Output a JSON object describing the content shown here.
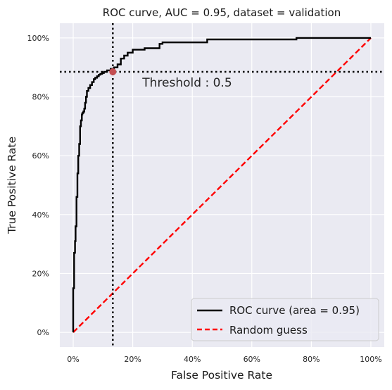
{
  "chart_data": {
    "type": "line",
    "title": "ROC curve, AUC = 0.95, dataset = validation",
    "xlabel": "False Positive Rate",
    "ylabel": "True Positive Rate",
    "xlim": [
      -0.045,
      1.045
    ],
    "ylim": [
      -0.05,
      1.05
    ],
    "xticks": [
      0,
      0.2,
      0.4,
      0.6,
      0.8,
      1.0
    ],
    "yticks": [
      0,
      0.2,
      0.4,
      0.6,
      0.8,
      1.0
    ],
    "xtick_labels": [
      "0%",
      "20%",
      "40%",
      "60%",
      "80%",
      "100%"
    ],
    "ytick_labels": [
      "0%",
      "20%",
      "40%",
      "60%",
      "80%",
      "100%"
    ],
    "grid": true,
    "background": "#eaeaf2",
    "legend_position": "lower-right",
    "series": [
      {
        "name": "ROC curve (area = 0.95)",
        "color": "#000000",
        "style": "solid",
        "x": [
          0.0,
          0.0,
          0.003,
          0.003,
          0.006,
          0.006,
          0.008,
          0.008,
          0.011,
          0.011,
          0.014,
          0.014,
          0.017,
          0.017,
          0.02,
          0.02,
          0.023,
          0.023,
          0.026,
          0.026,
          0.029,
          0.029,
          0.031,
          0.031,
          0.034,
          0.034,
          0.037,
          0.037,
          0.04,
          0.04,
          0.043,
          0.043,
          0.046,
          0.046,
          0.051,
          0.051,
          0.057,
          0.057,
          0.063,
          0.063,
          0.069,
          0.069,
          0.074,
          0.074,
          0.08,
          0.08,
          0.086,
          0.086,
          0.091,
          0.091,
          0.097,
          0.097,
          0.103,
          0.103,
          0.114,
          0.114,
          0.126,
          0.126,
          0.137,
          0.137,
          0.149,
          0.149,
          0.16,
          0.16,
          0.171,
          0.171,
          0.183,
          0.183,
          0.2,
          0.2,
          0.24,
          0.24,
          0.29,
          0.29,
          0.3,
          0.3,
          0.45,
          0.45,
          0.75,
          0.75,
          1.0
        ],
        "y": [
          0.0,
          0.15,
          0.15,
          0.27,
          0.27,
          0.31,
          0.31,
          0.36,
          0.36,
          0.46,
          0.46,
          0.54,
          0.54,
          0.6,
          0.6,
          0.64,
          0.64,
          0.7,
          0.7,
          0.72,
          0.72,
          0.74,
          0.74,
          0.745,
          0.745,
          0.75,
          0.75,
          0.76,
          0.76,
          0.78,
          0.78,
          0.8,
          0.8,
          0.82,
          0.82,
          0.83,
          0.83,
          0.84,
          0.84,
          0.85,
          0.85,
          0.86,
          0.86,
          0.865,
          0.865,
          0.87,
          0.87,
          0.875,
          0.875,
          0.878,
          0.878,
          0.881,
          0.881,
          0.885,
          0.885,
          0.89,
          0.89,
          0.895,
          0.895,
          0.9,
          0.9,
          0.91,
          0.91,
          0.93,
          0.93,
          0.94,
          0.94,
          0.95,
          0.95,
          0.96,
          0.96,
          0.965,
          0.965,
          0.98,
          0.98,
          0.985,
          0.985,
          0.995,
          0.995,
          1.0,
          1.0
        ]
      },
      {
        "name": "Random guess",
        "color": "#ff0000",
        "style": "dashed",
        "x": [
          0.0,
          1.0
        ],
        "y": [
          0.0,
          1.0
        ]
      }
    ],
    "threshold": {
      "label": "Threshold : 0.5",
      "x": 0.133,
      "y": 0.885,
      "marker_color": "#c44e52",
      "line_style": "dotted",
      "line_color": "#000000"
    }
  }
}
